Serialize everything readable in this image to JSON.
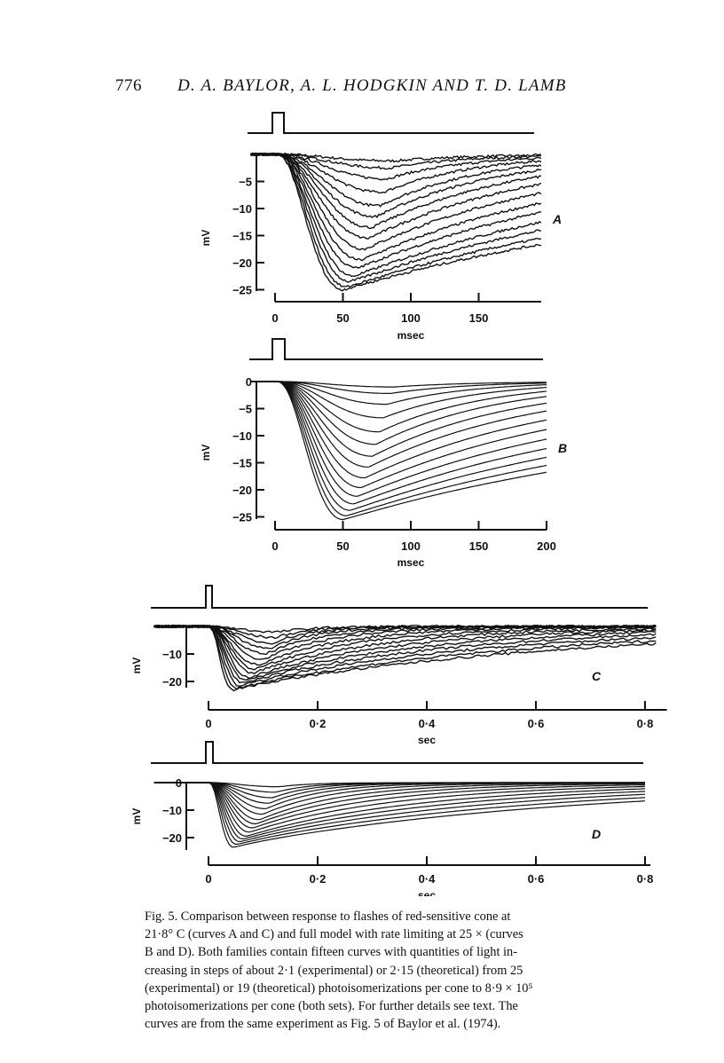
{
  "header": {
    "page_number": "776",
    "running_head": "D. A. BAYLOR, A. L. HODGKIN AND T. D. LAMB"
  },
  "panels": [
    {
      "id": "A",
      "letter": "A",
      "kind": "experimental",
      "xlabel": "msec",
      "ylabel": "mV",
      "x_ticks": [
        "0",
        "50",
        "100",
        "150"
      ],
      "y_ticks": [
        "-5",
        "-10",
        "-15",
        "-20",
        "-25"
      ],
      "curve_peaks_mV": [
        -1.2,
        -2.5,
        -4.5,
        -7,
        -9.5,
        -11.5,
        -13.5,
        -15.5,
        -17.5,
        -19.5,
        -21,
        -22.5,
        -23.5,
        -24.5,
        -25
      ]
    },
    {
      "id": "B",
      "letter": "B",
      "kind": "theoretical",
      "xlabel": "msec",
      "ylabel": "mV",
      "x_ticks": [
        "0",
        "50",
        "100",
        "150",
        "200"
      ],
      "y_ticks": [
        "0",
        "-5",
        "-10",
        "-15",
        "-20",
        "-25"
      ],
      "curve_peaks_mV": [
        -1,
        -2.2,
        -4.2,
        -6.7,
        -9.3,
        -11.6,
        -13.8,
        -15.8,
        -17.8,
        -19.6,
        -21.2,
        -22.6,
        -23.8,
        -24.8,
        -25.5
      ]
    },
    {
      "id": "C",
      "letter": "C",
      "kind": "experimental",
      "xlabel": "sec",
      "ylabel": "mV",
      "x_ticks": [
        "0",
        "0·2",
        "0·4",
        "0·6",
        "0·8"
      ],
      "y_ticks": [
        "-10",
        "-20"
      ],
      "curve_peaks_mV": [
        -2,
        -4,
        -6,
        -8,
        -10,
        -12,
        -14,
        -15.5,
        -17,
        -18.5,
        -19.5,
        -20.5,
        -21.5,
        -22.5,
        -23
      ]
    },
    {
      "id": "D",
      "letter": "D",
      "kind": "theoretical",
      "xlabel": "sec",
      "ylabel": "mV",
      "x_ticks": [
        "0",
        "0·2",
        "0·4",
        "0·6",
        "0·8"
      ],
      "y_ticks": [
        "0",
        "-10",
        "-20"
      ],
      "curve_peaks_mV": [
        -1.5,
        -3.5,
        -5.5,
        -7.5,
        -9.5,
        -11.5,
        -13.5,
        -15,
        -16.5,
        -18,
        -19.5,
        -20.5,
        -21.5,
        -22.5,
        -23.5
      ]
    }
  ],
  "caption": {
    "lines": [
      "Fig. 5. Comparison between response to flashes of red-sensitive cone at",
      "21·8° C (curves A and C) and full model with rate limiting at 25 × (curves",
      "B and D). Both families contain fifteen curves with quantities of light in-",
      "creasing in steps of about 2·1 (experimental) or 2·15 (theoretical) from 25",
      "(experimental) or 19 (theoretical) photoisomerizations per cone to 8·9 × 10⁵",
      "photoisomerizations per cone (both sets). For further details see text. The",
      "curves are from the same experiment as Fig. 5 of Baylor et al. (1974)."
    ]
  }
}
